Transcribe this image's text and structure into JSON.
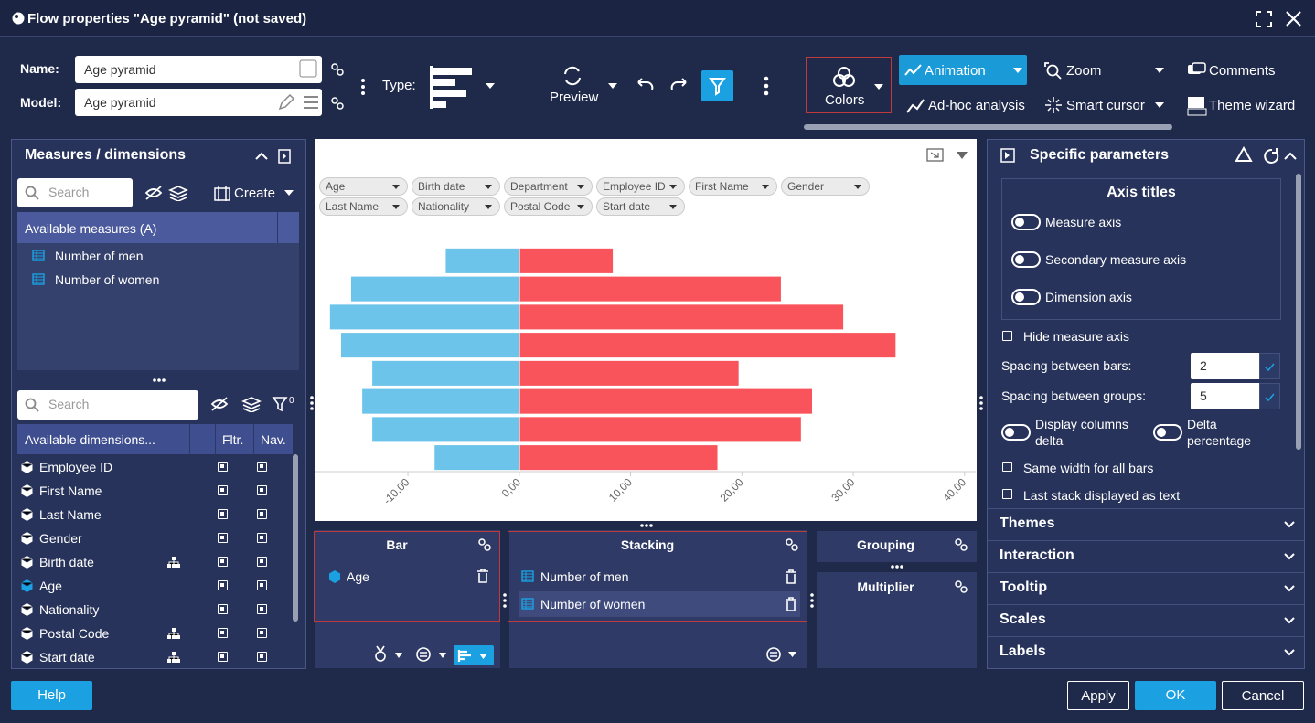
{
  "window": {
    "title": "Flow properties \"Age pyramid\" (not saved)"
  },
  "toolbar": {
    "name_label": "Name:",
    "name_value": "Age pyramid",
    "model_label": "Model:",
    "model_value": "Age pyramid",
    "type_label": "Type:",
    "preview": "Preview",
    "colors": "Colors",
    "animation": "Animation",
    "zoom": "Zoom",
    "comments": "Comments",
    "adhoc": "Ad-hoc analysis",
    "smart_cursor": "Smart cursor",
    "theme_wizard": "Theme wizard"
  },
  "left_panel": {
    "title": "Measures / dimensions",
    "search_placeholder": "Search",
    "create": "Create",
    "measures_header": "Available measures (A)",
    "measures": [
      "Number of men",
      "Number of women"
    ],
    "search_placeholder_2": "Search",
    "filter_count": 0,
    "dims_header": "Available dimensions...",
    "col_filter": "Fltr.",
    "col_nav": "Nav.",
    "dimensions": [
      "Employee ID",
      "First Name",
      "Last Name",
      "Gender",
      "Birth date",
      "Age",
      "Nationality",
      "Postal Code",
      "Start date"
    ]
  },
  "chart_filters": [
    "Age",
    "Birth date",
    "Department",
    "Employee ID",
    "First Name",
    "Gender",
    "Last Name",
    "Nationality",
    "Postal Code",
    "Start date"
  ],
  "chart_data": {
    "type": "bar",
    "orientation": "horizontal",
    "stacked": true,
    "grid": false,
    "categories": [
      null,
      null,
      null,
      null,
      null,
      null,
      null,
      null
    ],
    "series": [
      {
        "name": "Number of men",
        "color": "#6cc4ea",
        "values": [
          -6.6,
          -15.1,
          -17.0,
          -16.0,
          -13.2,
          -14.1,
          -13.2,
          -7.6
        ]
      },
      {
        "name": "Number of women",
        "color": "#f9545b",
        "values": [
          8.4,
          23.5,
          29.1,
          33.8,
          19.7,
          26.3,
          25.3,
          17.8
        ]
      }
    ],
    "xlim": [
      -18.3,
      41
    ],
    "xticks": [
      {
        "value": -10,
        "label": "-10,00"
      },
      {
        "value": 0,
        "label": "0,00"
      },
      {
        "value": 10,
        "label": "10,00"
      },
      {
        "value": 20,
        "label": "20,00"
      },
      {
        "value": 30,
        "label": "30,00"
      },
      {
        "value": 40,
        "label": "40,00"
      }
    ]
  },
  "drop_zones": {
    "bar": {
      "title": "Bar",
      "items": [
        "Age"
      ]
    },
    "stacking": {
      "title": "Stacking"
    },
    "grouping": {
      "title": "Grouping"
    },
    "multiplier": {
      "title": "Multiplier"
    }
  },
  "right_panel": {
    "title": "Specific parameters",
    "section": "Axis titles",
    "toggles": [
      "Measure axis",
      "Secondary measure axis",
      "Dimension axis"
    ],
    "hide_measure_axis": "Hide measure axis",
    "spacing_bars_label": "Spacing between bars:",
    "spacing_bars": 2,
    "spacing_groups_label": "Spacing between groups:",
    "spacing_groups": 5,
    "display_columns_delta": "Display columns delta",
    "delta_percentage": "Delta percentage",
    "same_width": "Same width for all bars",
    "last_stack": "Last stack displayed as text",
    "sections": [
      "Themes",
      "Interaction",
      "Tooltip",
      "Scales",
      "Labels"
    ]
  },
  "footer": {
    "help": "Help",
    "apply": "Apply",
    "ok": "OK",
    "cancel": "Cancel"
  }
}
